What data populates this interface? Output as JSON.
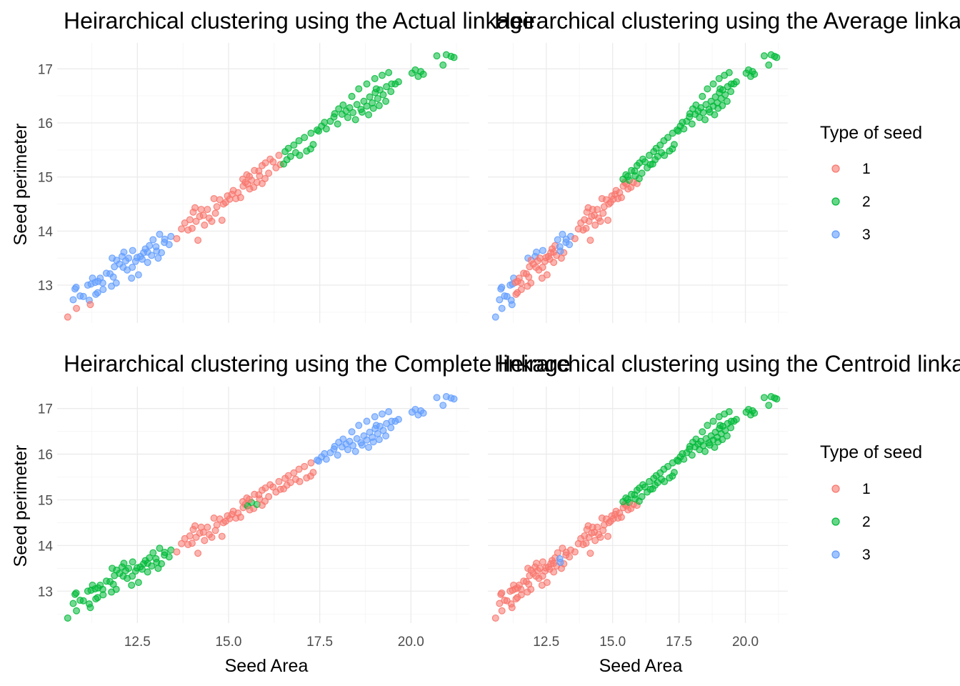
{
  "chart_data": [
    {
      "type": "scatter",
      "title": "Heirarchical clustering using the Actual linkage",
      "xlabel": "",
      "ylabel": "Seed perimeter",
      "xlim": [
        10.3,
        21.6
      ],
      "ylim": [
        12.3,
        17.48
      ],
      "x_ticks": [
        12.5,
        15.0,
        17.5,
        20.0
      ],
      "y_ticks": [
        13,
        14,
        15,
        16,
        17
      ],
      "x_tick_labels": [],
      "y_tick_labels": [
        "13",
        "14",
        "15",
        "16",
        "17"
      ],
      "cluster_rule": "actual",
      "series": [
        {
          "name": "1"
        },
        {
          "name": "2"
        },
        {
          "name": "3"
        }
      ]
    },
    {
      "type": "scatter",
      "title": "Heirarchical clustering using the Average linkage",
      "xlabel": "",
      "ylabel": "",
      "xlim": [
        10.3,
        21.6
      ],
      "ylim": [
        12.3,
        17.48
      ],
      "x_ticks": [
        12.5,
        15.0,
        17.5,
        20.0
      ],
      "y_ticks": [
        13,
        14,
        15,
        16,
        17
      ],
      "x_tick_labels": [],
      "y_tick_labels": [],
      "cluster_rule": "average",
      "series": [
        {
          "name": "1"
        },
        {
          "name": "2"
        },
        {
          "name": "3"
        }
      ]
    },
    {
      "type": "scatter",
      "title": "Heirarchical clustering using the Complete linkage",
      "xlabel": "Seed Area",
      "ylabel": "Seed perimeter",
      "xlim": [
        10.3,
        21.6
      ],
      "ylim": [
        12.3,
        17.48
      ],
      "x_ticks": [
        12.5,
        15.0,
        17.5,
        20.0
      ],
      "y_ticks": [
        13,
        14,
        15,
        16,
        17
      ],
      "x_tick_labels": [
        "12.5",
        "15.0",
        "17.5",
        "20.0"
      ],
      "y_tick_labels": [
        "13",
        "14",
        "15",
        "16",
        "17"
      ],
      "cluster_rule": "complete",
      "series": [
        {
          "name": "1"
        },
        {
          "name": "2"
        },
        {
          "name": "3"
        }
      ]
    },
    {
      "type": "scatter",
      "title": "Heirarchical clustering using the Centroid linkage",
      "xlabel": "Seed Area",
      "ylabel": "",
      "xlim": [
        10.3,
        21.6
      ],
      "ylim": [
        12.3,
        17.48
      ],
      "x_ticks": [
        12.5,
        15.0,
        17.5,
        20.0
      ],
      "y_ticks": [
        13,
        14,
        15,
        16,
        17
      ],
      "x_tick_labels": [
        "12.5",
        "15.0",
        "17.5",
        "20.0"
      ],
      "y_tick_labels": [],
      "cluster_rule": "centroid",
      "series": [
        {
          "name": "1"
        },
        {
          "name": "2"
        },
        {
          "name": "3"
        }
      ]
    }
  ],
  "legends": [
    {
      "title": "Type of seed",
      "items": [
        {
          "label": "1",
          "color": "#F8766D"
        },
        {
          "label": "2",
          "color": "#00BA38"
        },
        {
          "label": "3",
          "color": "#619CFF"
        }
      ]
    },
    {
      "title": "Type of seed",
      "items": [
        {
          "label": "1",
          "color": "#F8766D"
        },
        {
          "label": "2",
          "color": "#00BA38"
        },
        {
          "label": "3",
          "color": "#619CFF"
        }
      ]
    }
  ],
  "colors": {
    "1": "#F8766D",
    "2": "#00BA38",
    "3": "#619CFF"
  },
  "points": [
    [
      10.59,
      12.41
    ],
    [
      10.74,
      12.73
    ],
    [
      10.79,
      12.93
    ],
    [
      10.82,
      12.96
    ],
    [
      10.83,
      12.57
    ],
    [
      10.93,
      12.8
    ],
    [
      11.02,
      12.79
    ],
    [
      11.14,
      13.0
    ],
    [
      11.18,
      12.72
    ],
    [
      11.23,
      13.02
    ],
    [
      11.27,
      13.13
    ],
    [
      11.34,
      13.05
    ],
    [
      11.36,
      12.83
    ],
    [
      11.41,
      12.86
    ],
    [
      11.42,
      13.07
    ],
    [
      11.48,
      13.13
    ],
    [
      11.55,
      13.04
    ],
    [
      11.56,
      12.92
    ],
    [
      11.65,
      13.22
    ],
    [
      11.75,
      13.21
    ],
    [
      11.81,
      13.5
    ],
    [
      11.84,
      13.15
    ],
    [
      11.87,
      13.34
    ],
    [
      11.92,
      13.04
    ],
    [
      11.93,
      13.46
    ],
    [
      12.01,
      13.39
    ],
    [
      12.08,
      13.53
    ],
    [
      12.11,
      13.33
    ],
    [
      12.13,
      13.61
    ],
    [
      12.18,
      13.45
    ],
    [
      12.22,
      13.28
    ],
    [
      12.26,
      13.5
    ],
    [
      12.36,
      13.33
    ],
    [
      12.37,
      13.64
    ],
    [
      12.45,
      13.44
    ],
    [
      12.49,
      13.51
    ],
    [
      12.58,
      13.53
    ],
    [
      12.63,
      13.48
    ],
    [
      12.67,
      13.6
    ],
    [
      12.72,
      13.67
    ],
    [
      12.78,
      13.42
    ],
    [
      12.83,
      13.73
    ],
    [
      12.89,
      13.55
    ],
    [
      12.93,
      13.84
    ],
    [
      13.01,
      13.71
    ],
    [
      13.07,
      13.5
    ],
    [
      13.11,
      13.94
    ],
    [
      13.16,
      13.6
    ],
    [
      13.25,
      13.85
    ],
    [
      13.37,
      13.75
    ],
    [
      11.21,
      12.64
    ],
    [
      11.79,
      12.98
    ],
    [
      12.34,
      13.13
    ],
    [
      12.53,
      13.19
    ],
    [
      12.78,
      13.61
    ],
    [
      13.03,
      13.63
    ],
    [
      13.24,
      13.79
    ],
    [
      13.42,
      13.9
    ],
    [
      13.58,
      13.86
    ],
    [
      13.71,
      14.04
    ],
    [
      13.8,
      14.15
    ],
    [
      13.89,
      14.02
    ],
    [
      13.94,
      14.21
    ],
    [
      14.0,
      14.05
    ],
    [
      14.03,
      14.35
    ],
    [
      14.08,
      14.43
    ],
    [
      14.11,
      14.18
    ],
    [
      14.16,
      13.83
    ],
    [
      14.21,
      14.27
    ],
    [
      14.25,
      14.4
    ],
    [
      14.31,
      14.29
    ],
    [
      14.34,
      14.11
    ],
    [
      14.42,
      14.4
    ],
    [
      14.47,
      14.24
    ],
    [
      14.54,
      14.18
    ],
    [
      14.6,
      14.6
    ],
    [
      14.64,
      14.33
    ],
    [
      14.68,
      14.45
    ],
    [
      14.76,
      14.58
    ],
    [
      14.82,
      14.2
    ],
    [
      14.86,
      14.5
    ],
    [
      14.92,
      14.53
    ],
    [
      14.97,
      14.65
    ],
    [
      15.03,
      14.59
    ],
    [
      15.09,
      14.68
    ],
    [
      15.13,
      14.75
    ],
    [
      15.2,
      14.6
    ],
    [
      15.26,
      14.71
    ],
    [
      15.33,
      14.62
    ],
    [
      15.4,
      14.83
    ],
    [
      15.46,
      14.9
    ],
    [
      15.52,
      14.87
    ],
    [
      15.58,
      14.78
    ],
    [
      15.63,
      14.94
    ],
    [
      15.69,
      14.81
    ],
    [
      15.78,
      14.9
    ],
    [
      15.85,
      15.02
    ],
    [
      15.92,
      14.88
    ],
    [
      16.0,
      14.97
    ],
    [
      16.1,
      15.07
    ],
    [
      16.3,
      15.17
    ],
    [
      16.42,
      15.23
    ],
    [
      16.51,
      15.24
    ],
    [
      16.6,
      15.32
    ],
    [
      16.7,
      15.38
    ],
    [
      16.84,
      15.45
    ],
    [
      16.95,
      15.4
    ],
    [
      17.14,
      15.48
    ],
    [
      17.25,
      15.52
    ],
    [
      17.32,
      15.6
    ],
    [
      15.39,
      14.96
    ],
    [
      15.5,
      15.04
    ],
    [
      15.57,
      15.01
    ],
    [
      15.71,
      15.12
    ],
    [
      15.83,
      15.11
    ],
    [
      15.92,
      15.21
    ],
    [
      16.01,
      15.26
    ],
    [
      16.14,
      15.33
    ],
    [
      16.22,
      15.28
    ],
    [
      16.38,
      15.4
    ],
    [
      16.55,
      15.47
    ],
    [
      16.64,
      15.53
    ],
    [
      16.79,
      15.59
    ],
    [
      16.93,
      15.67
    ],
    [
      17.08,
      15.73
    ],
    [
      17.26,
      15.81
    ],
    [
      17.43,
      15.87
    ],
    [
      17.55,
      15.94
    ],
    [
      17.68,
      15.89
    ],
    [
      17.79,
      16.03
    ],
    [
      17.89,
      16.11
    ],
    [
      17.99,
      15.98
    ],
    [
      18.11,
      16.16
    ],
    [
      18.22,
      16.22
    ],
    [
      18.32,
      16.28
    ],
    [
      18.41,
      16.19
    ],
    [
      18.52,
      16.34
    ],
    [
      18.63,
      16.25
    ],
    [
      18.71,
      16.4
    ],
    [
      18.79,
      16.31
    ],
    [
      18.87,
      16.48
    ],
    [
      18.94,
      16.37
    ],
    [
      19.02,
      16.56
    ],
    [
      19.09,
      16.45
    ],
    [
      19.15,
      16.61
    ],
    [
      19.24,
      16.52
    ],
    [
      19.33,
      16.67
    ],
    [
      19.45,
      16.58
    ],
    [
      19.57,
      16.72
    ],
    [
      19.66,
      16.76
    ],
    [
      18.02,
      16.26
    ],
    [
      18.27,
      16.1
    ],
    [
      18.48,
      16.06
    ],
    [
      18.66,
      16.2
    ],
    [
      18.84,
      16.15
    ],
    [
      18.97,
      16.27
    ],
    [
      19.13,
      16.32
    ],
    [
      19.31,
      16.4
    ],
    [
      19.05,
      16.63
    ],
    [
      19.47,
      16.72
    ],
    [
      17.47,
      15.85
    ],
    [
      17.63,
      16.01
    ],
    [
      17.91,
      16.17
    ],
    [
      18.14,
      16.33
    ],
    [
      18.38,
      16.49
    ],
    [
      18.57,
      16.63
    ],
    [
      18.79,
      16.72
    ],
    [
      19.01,
      16.82
    ],
    [
      19.21,
      16.88
    ],
    [
      19.39,
      16.93
    ],
    [
      20.03,
      16.92
    ],
    [
      20.12,
      16.98
    ],
    [
      20.2,
      16.86
    ],
    [
      20.27,
      16.95
    ],
    [
      20.34,
      16.9
    ],
    [
      20.71,
      17.24
    ],
    [
      20.88,
      17.07
    ],
    [
      20.97,
      17.26
    ],
    [
      21.1,
      17.23
    ],
    [
      21.18,
      17.21
    ]
  ]
}
